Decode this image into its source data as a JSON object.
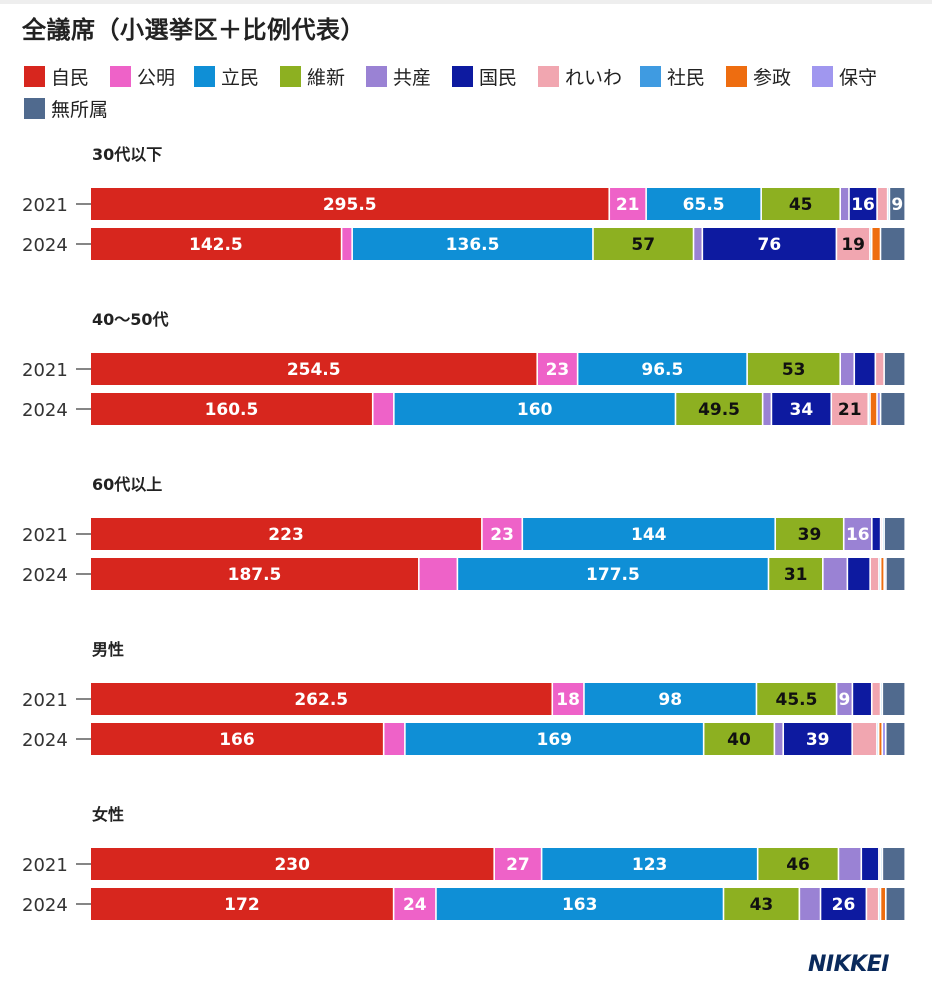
{
  "title": "全議席（小選挙区＋比例代表）",
  "colors": {
    "自民": "#d7261e",
    "公明": "#ee62c8",
    "立民": "#0f8fd6",
    "維新": "#8db021",
    "共産": "#9a82d4",
    "国民": "#0d1aa0",
    "れいわ": "#f1a6b0",
    "社民": "#3f9be1",
    "参政": "#ee6d10",
    "保守": "#a097ef",
    "無所属": "#506a8e"
  },
  "legend": [
    "自民",
    "公明",
    "立民",
    "維新",
    "共産",
    "国民",
    "れいわ",
    "社民",
    "参政",
    "保守",
    "無所属"
  ],
  "chart_data": {
    "type": "bar",
    "orientation": "horizontal",
    "stacked": true,
    "parties": [
      "自民",
      "公明",
      "立民",
      "維新",
      "共産",
      "国民",
      "れいわ",
      "社民",
      "参政",
      "保守",
      "無所属"
    ],
    "groups": [
      {
        "label": "30代以下",
        "rows": [
          {
            "year": "2021",
            "values": [
              295.5,
              21,
              65.5,
              45,
              5,
              16,
              6,
              1,
              0,
              0,
              9
            ],
            "labels": [
              "295.5",
              "21",
              "65.5",
              "45",
              "",
              "16",
              "",
              "",
              "",
              "",
              "9"
            ]
          },
          {
            "year": "2024",
            "values": [
              142.5,
              6,
              136.5,
              57,
              5,
              76,
              19,
              1,
              5,
              0,
              14
            ],
            "labels": [
              "142.5",
              "",
              "136.5",
              "57",
              "",
              "76",
              "19",
              "",
              "",
              "",
              ""
            ]
          }
        ]
      },
      {
        "label": "40〜50代",
        "rows": [
          {
            "year": "2021",
            "values": [
              254.5,
              23,
              96.5,
              53,
              8,
              12,
              5,
              0,
              0,
              0,
              12
            ],
            "labels": [
              "254.5",
              "23",
              "96.5",
              "53",
              "",
              "",
              "",
              "",
              "",
              "",
              ""
            ]
          },
          {
            "year": "2024",
            "values": [
              160.5,
              12,
              160,
              49.5,
              5,
              34,
              21,
              1,
              4,
              2,
              14
            ],
            "labels": [
              "160.5",
              "",
              "160",
              "49.5",
              "",
              "34",
              "21",
              "",
              "",
              "",
              ""
            ]
          }
        ]
      },
      {
        "label": "60代以上",
        "rows": [
          {
            "year": "2021",
            "values": [
              223,
              23,
              144,
              39,
              16,
              5,
              1,
              1,
              0,
              0,
              12
            ],
            "labels": [
              "223",
              "23",
              "144",
              "39",
              "16",
              "",
              "",
              "",
              "",
              "",
              ""
            ]
          },
          {
            "year": "2024",
            "values": [
              187.5,
              22,
              177.5,
              31,
              14,
              13,
              5,
              1,
              2,
              1,
              11
            ],
            "labels": [
              "187.5",
              "",
              "177.5",
              "31",
              "",
              "",
              "",
              "",
              "",
              "",
              ""
            ]
          }
        ]
      },
      {
        "label": "男性",
        "rows": [
          {
            "year": "2021",
            "values": [
              262.5,
              18,
              98,
              45.5,
              9,
              11,
              5,
              1,
              0,
              0,
              13
            ],
            "labels": [
              "262.5",
              "18",
              "98",
              "45.5",
              "9",
              "",
              "",
              "",
              "",
              "",
              ""
            ]
          },
          {
            "year": "2024",
            "values": [
              166,
              12,
              169,
              40,
              5,
              39,
              14,
              1,
              2,
              2,
              11
            ],
            "labels": [
              "166",
              "",
              "169",
              "40",
              "",
              "39",
              "",
              "",
              "",
              "",
              ""
            ]
          }
        ]
      },
      {
        "label": "女性",
        "rows": [
          {
            "year": "2021",
            "values": [
              230,
              27,
              123,
              46,
              13,
              10,
              1,
              1,
              0,
              0,
              13
            ],
            "labels": [
              "230",
              "27",
              "123",
              "46",
              "",
              "",
              "",
              "",
              "",
              "",
              ""
            ]
          },
          {
            "year": "2024",
            "values": [
              172,
              24,
              163,
              43,
              12,
              26,
              7,
              1,
              3,
              0,
              11
            ],
            "labels": [
              "172",
              "24",
              "163",
              "43",
              "",
              "26",
              "",
              "",
              "",
              "",
              ""
            ]
          }
        ]
      }
    ]
  },
  "source": "NIKKEI"
}
